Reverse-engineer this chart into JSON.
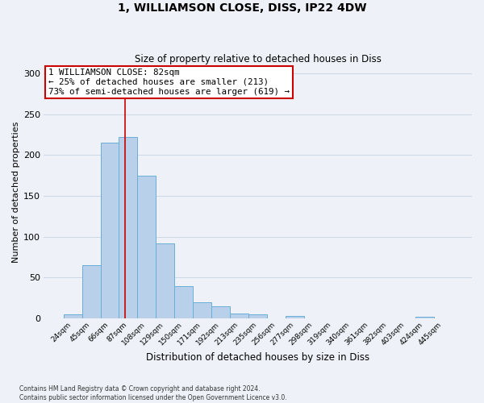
{
  "title": "1, WILLIAMSON CLOSE, DISS, IP22 4DW",
  "subtitle": "Size of property relative to detached houses in Diss",
  "xlabel": "Distribution of detached houses by size in Diss",
  "ylabel": "Number of detached properties",
  "footnote": "Contains HM Land Registry data © Crown copyright and database right 2024.\nContains public sector information licensed under the Open Government Licence v3.0.",
  "bar_labels": [
    "24sqm",
    "45sqm",
    "66sqm",
    "87sqm",
    "108sqm",
    "129sqm",
    "150sqm",
    "171sqm",
    "192sqm",
    "213sqm",
    "235sqm",
    "256sqm",
    "277sqm",
    "298sqm",
    "319sqm",
    "340sqm",
    "361sqm",
    "382sqm",
    "403sqm",
    "424sqm",
    "445sqm"
  ],
  "bar_heights": [
    5,
    65,
    215,
    222,
    175,
    92,
    40,
    20,
    15,
    6,
    5,
    0,
    3,
    0,
    0,
    0,
    0,
    0,
    0,
    2,
    0
  ],
  "bar_color": "#b8d0ea",
  "bar_edge_color": "#6aaed6",
  "ylim": [
    0,
    310
  ],
  "yticks": [
    0,
    50,
    100,
    150,
    200,
    250,
    300
  ],
  "red_line_x": 2.82,
  "annotation_text": "1 WILLIAMSON CLOSE: 82sqm\n← 25% of detached houses are smaller (213)\n73% of semi-detached houses are larger (619) →",
  "annotation_box_color": "#ffffff",
  "annotation_box_edge_color": "#cc0000",
  "red_line_color": "#cc0000",
  "background_color": "#eef2f8",
  "grid_color": "#d0d8e8",
  "title_fontsize": 10,
  "subtitle_fontsize": 8.5,
  "ylabel_fontsize": 8,
  "xlabel_fontsize": 8.5,
  "footnote_fontsize": 5.5
}
